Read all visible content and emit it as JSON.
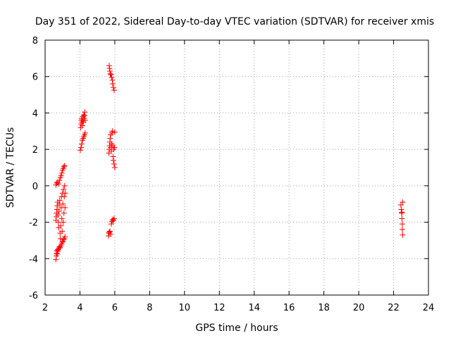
{
  "chart_data": {
    "type": "scatter",
    "title": "Day 351 of 2022, Sidereal Day-to-day VTEC variation (SDTVAR) for receiver xmis",
    "xlabel": "GPS time / hours",
    "ylabel": "SDTVAR / TECUs",
    "xlim": [
      2,
      24
    ],
    "ylim": [
      -6,
      8
    ],
    "xticks": [
      2,
      4,
      6,
      8,
      10,
      12,
      14,
      16,
      18,
      20,
      22,
      24
    ],
    "yticks": [
      -6,
      -4,
      -2,
      0,
      2,
      4,
      6,
      8
    ],
    "grid": true,
    "marker": "plus",
    "color": "#ff0000",
    "series": [
      {
        "name": "SDTVAR",
        "points": [
          [
            2.62,
            -4.05
          ],
          [
            2.64,
            -3.85
          ],
          [
            2.66,
            -3.7
          ],
          [
            2.68,
            -3.55
          ],
          [
            2.7,
            -3.75
          ],
          [
            2.72,
            -3.6
          ],
          [
            2.74,
            -3.5
          ],
          [
            2.78,
            -3.45
          ],
          [
            2.82,
            -3.35
          ],
          [
            2.86,
            -3.4
          ],
          [
            2.9,
            -3.3
          ],
          [
            2.94,
            -3.2
          ],
          [
            2.98,
            -3.1
          ],
          [
            3.02,
            -3.05
          ],
          [
            3.06,
            -2.95
          ],
          [
            3.1,
            -2.9
          ],
          [
            3.14,
            -2.8
          ],
          [
            2.62,
            -1.9
          ],
          [
            2.64,
            -1.7
          ],
          [
            2.66,
            -1.5
          ],
          [
            2.68,
            -1.3
          ],
          [
            2.7,
            -1.1
          ],
          [
            2.72,
            -0.9
          ],
          [
            2.74,
            -1.6
          ],
          [
            2.76,
            -2.0
          ],
          [
            2.78,
            -2.3
          ],
          [
            2.8,
            -1.4
          ],
          [
            2.82,
            -1.0
          ],
          [
            2.84,
            -0.8
          ],
          [
            2.86,
            -2.6
          ],
          [
            2.88,
            -2.9
          ],
          [
            2.9,
            -2.2
          ],
          [
            2.92,
            -1.2
          ],
          [
            2.94,
            -0.6
          ],
          [
            2.96,
            -1.8
          ],
          [
            2.98,
            -2.5
          ],
          [
            3.0,
            -0.4
          ],
          [
            3.02,
            -1.0
          ],
          [
            3.04,
            -2.0
          ],
          [
            3.06,
            -0.2
          ],
          [
            3.08,
            -1.5
          ],
          [
            3.1,
            -0.6
          ],
          [
            3.12,
            0.0
          ],
          [
            3.14,
            -1.2
          ],
          [
            3.16,
            -0.4
          ],
          [
            2.62,
            0.05
          ],
          [
            2.66,
            0.15
          ],
          [
            2.72,
            0.2
          ],
          [
            2.78,
            0.1
          ],
          [
            2.82,
            0.3
          ],
          [
            2.88,
            0.45
          ],
          [
            2.92,
            0.55
          ],
          [
            2.96,
            0.7
          ],
          [
            3.0,
            0.85
          ],
          [
            3.04,
            0.95
          ],
          [
            3.08,
            1.05
          ],
          [
            3.12,
            1.1
          ],
          [
            4.02,
            1.95
          ],
          [
            4.06,
            2.1
          ],
          [
            4.1,
            2.3
          ],
          [
            4.14,
            2.5
          ],
          [
            4.18,
            2.6
          ],
          [
            4.22,
            2.7
          ],
          [
            4.26,
            2.8
          ],
          [
            4.3,
            2.9
          ],
          [
            4.04,
            3.2
          ],
          [
            4.06,
            3.4
          ],
          [
            4.08,
            3.6
          ],
          [
            4.1,
            3.7
          ],
          [
            4.12,
            3.5
          ],
          [
            4.14,
            3.3
          ],
          [
            4.16,
            3.6
          ],
          [
            4.18,
            3.8
          ],
          [
            4.2,
            3.5
          ],
          [
            4.22,
            3.9
          ],
          [
            4.24,
            3.7
          ],
          [
            4.26,
            3.85
          ],
          [
            4.28,
            4.05
          ],
          [
            4.3,
            3.6
          ],
          [
            5.64,
            -2.75
          ],
          [
            5.66,
            -2.6
          ],
          [
            5.68,
            -2.55
          ],
          [
            5.72,
            -2.5
          ],
          [
            5.76,
            -2.65
          ],
          [
            5.8,
            -2.1
          ],
          [
            5.84,
            -1.95
          ],
          [
            5.88,
            -1.85
          ],
          [
            5.92,
            -1.9
          ],
          [
            5.96,
            -1.8
          ],
          [
            5.66,
            1.8
          ],
          [
            5.68,
            2.0
          ],
          [
            5.7,
            2.2
          ],
          [
            5.72,
            2.4
          ],
          [
            5.74,
            2.6
          ],
          [
            5.76,
            2.8
          ],
          [
            5.78,
            2.1
          ],
          [
            5.8,
            1.9
          ],
          [
            5.82,
            2.3
          ],
          [
            5.84,
            2.9
          ],
          [
            5.86,
            3.0
          ],
          [
            5.88,
            2.2
          ],
          [
            5.9,
            1.6
          ],
          [
            5.92,
            1.4
          ],
          [
            5.94,
            2.0
          ],
          [
            5.96,
            1.2
          ],
          [
            5.98,
            2.1
          ],
          [
            6.0,
            2.95
          ],
          [
            6.0,
            1.0
          ],
          [
            5.68,
            6.6
          ],
          [
            5.7,
            6.45
          ],
          [
            5.72,
            6.3
          ],
          [
            5.74,
            6.15
          ],
          [
            5.78,
            6.1
          ],
          [
            5.82,
            5.95
          ],
          [
            5.86,
            5.8
          ],
          [
            5.88,
            5.6
          ],
          [
            5.92,
            5.4
          ],
          [
            5.96,
            5.25
          ],
          [
            22.42,
            -1.05
          ],
          [
            22.44,
            -1.3
          ],
          [
            22.46,
            -1.5
          ],
          [
            22.48,
            -1.45
          ],
          [
            22.48,
            -1.8
          ],
          [
            22.5,
            -2.1
          ],
          [
            22.5,
            -2.4
          ],
          [
            22.52,
            -2.7
          ],
          [
            22.52,
            -0.9
          ]
        ]
      }
    ]
  }
}
